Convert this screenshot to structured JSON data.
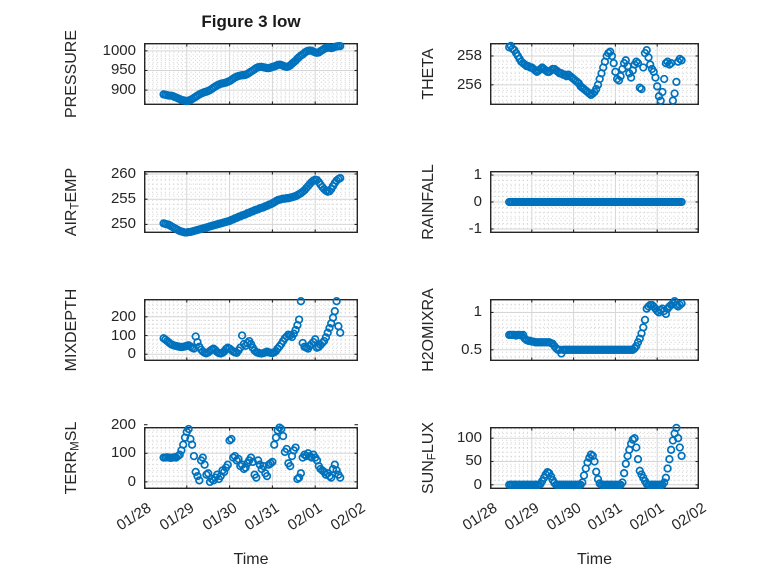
{
  "figure": {
    "title": "Figure 3 low",
    "xlabel": "Time",
    "marker_color": "#0072BD",
    "axis_color": "#262626",
    "major_grid_color": "#d6d6d6",
    "minor_grid_color": "#cbcbcb",
    "background": "#ffffff"
  },
  "time_axis": {
    "tick_labels": [
      "01/28",
      "01/29",
      "01/30",
      "01/31",
      "02/01",
      "02/02"
    ],
    "xlim_days": [
      0,
      5
    ],
    "t_start_days": 0.4583,
    "t_step_days": 0.0416667,
    "sampling": "hourly"
  },
  "chart_data": [
    {
      "id": "pressure",
      "type": "scatter",
      "row": 0,
      "col": 0,
      "ylabel": {
        "pre": "PRESSURE",
        "sub": "",
        "post": ""
      },
      "ylim": [
        862,
        1020
      ],
      "yticks": [
        900,
        950,
        1000
      ],
      "values": [
        889,
        888,
        887,
        886,
        886,
        885,
        883,
        881,
        879,
        877,
        875,
        874,
        873,
        872,
        873,
        875,
        877,
        880,
        883,
        886,
        889,
        891,
        893,
        895,
        896,
        898,
        900,
        903,
        906,
        909,
        912,
        914,
        916,
        917,
        918,
        919,
        921,
        923,
        926,
        929,
        932,
        934,
        936,
        937,
        938,
        938,
        939,
        941,
        944,
        947,
        950,
        953,
        956,
        958,
        959,
        959,
        958,
        957,
        956,
        956,
        957,
        959,
        960,
        962,
        964,
        965,
        964,
        962,
        960,
        959,
        960,
        963,
        967,
        971,
        975,
        980,
        984,
        988,
        991,
        995,
        998,
        1000,
        1001,
        1000,
        998,
        996,
        995,
        996,
        999,
        1002,
        1005,
        1007,
        1008,
        1008,
        1007,
        1008,
        1010,
        1011,
        1012,
        1012
      ]
    },
    {
      "id": "theta",
      "type": "scatter",
      "row": 0,
      "col": 1,
      "ylabel": {
        "pre": "THETA",
        "sub": "",
        "post": ""
      },
      "ylim": [
        254.6,
        258.9
      ],
      "yticks": [
        256,
        258
      ],
      "values": [
        258.6,
        258.7,
        258.5,
        258.4,
        258.2,
        258.0,
        257.8,
        257.6,
        257.5,
        257.4,
        257.3,
        257.3,
        257.2,
        257.2,
        257.1,
        257.0,
        256.9,
        257.0,
        257.1,
        257.2,
        257.1,
        257.0,
        256.9,
        256.9,
        257.0,
        257.1,
        257.1,
        257.0,
        256.9,
        256.8,
        256.8,
        256.7,
        256.7,
        256.6,
        256.7,
        256.6,
        256.5,
        256.4,
        256.3,
        256.2,
        256.1,
        255.9,
        255.8,
        255.7,
        255.6,
        255.5,
        255.4,
        255.3,
        255.4,
        255.5,
        255.7,
        256.0,
        256.4,
        256.8,
        257.2,
        257.6,
        258.0,
        258.2,
        258.3,
        258.0,
        257.5,
        256.9,
        256.4,
        256.3,
        256.6,
        257.1,
        257.5,
        257.7,
        257.3,
        256.8,
        256.5,
        257.0,
        257.4,
        257.6,
        257.5,
        255.8,
        255.7,
        257.2,
        258.2,
        258.4,
        257.9,
        257.4,
        257.1,
        256.9,
        256.5,
        255.9,
        255.2,
        254.9,
        255.5,
        256.4,
        257.5,
        257.6,
        257.4,
        257.5,
        254.9,
        255.4,
        256.2,
        257.6,
        257.8,
        257.7
      ]
    },
    {
      "id": "air_temp",
      "type": "scatter",
      "row": 1,
      "col": 0,
      "ylabel": {
        "pre": "AIR",
        "sub": "T",
        "post": "EMP"
      },
      "ylim": [
        248.3,
        260.6
      ],
      "yticks": [
        250,
        255,
        260
      ],
      "values": [
        250.2,
        250.1,
        250.0,
        249.9,
        249.7,
        249.5,
        249.3,
        249.1,
        248.9,
        248.7,
        248.6,
        248.5,
        248.4,
        248.4,
        248.5,
        248.5,
        248.6,
        248.7,
        248.8,
        248.9,
        249.0,
        249.1,
        249.2,
        249.3,
        249.4,
        249.5,
        249.6,
        249.7,
        249.8,
        249.9,
        250.0,
        250.1,
        250.2,
        250.3,
        250.4,
        250.5,
        250.6,
        250.7,
        250.9,
        251.0,
        251.2,
        251.3,
        251.5,
        251.6,
        251.8,
        251.9,
        252.0,
        252.2,
        252.3,
        252.5,
        252.6,
        252.8,
        252.9,
        253.0,
        253.2,
        253.3,
        253.4,
        253.6,
        253.7,
        253.9,
        254.0,
        254.2,
        254.4,
        254.6,
        254.8,
        254.9,
        255.0,
        255.1,
        255.1,
        255.2,
        255.2,
        255.3,
        255.4,
        255.5,
        255.6,
        255.8,
        256.0,
        256.2,
        256.5,
        256.8,
        257.2,
        257.6,
        258.0,
        258.4,
        258.7,
        258.9,
        258.8,
        258.4,
        257.9,
        257.4,
        257.0,
        256.7,
        256.5,
        256.6,
        257.0,
        257.6,
        258.2,
        258.7,
        259.0,
        259.2
      ]
    },
    {
      "id": "rainfall",
      "type": "scatter",
      "row": 1,
      "col": 1,
      "ylabel": {
        "pre": "RAINFALL",
        "sub": "",
        "post": ""
      },
      "ylim": [
        -1.15,
        1.15
      ],
      "yticks": [
        -1,
        0,
        1
      ],
      "values": [
        0,
        0,
        0,
        0,
        0,
        0,
        0,
        0,
        0,
        0,
        0,
        0,
        0,
        0,
        0,
        0,
        0,
        0,
        0,
        0,
        0,
        0,
        0,
        0,
        0,
        0,
        0,
        0,
        0,
        0,
        0,
        0,
        0,
        0,
        0,
        0,
        0,
        0,
        0,
        0,
        0,
        0,
        0,
        0,
        0,
        0,
        0,
        0,
        0,
        0,
        0,
        0,
        0,
        0,
        0,
        0,
        0,
        0,
        0,
        0,
        0,
        0,
        0,
        0,
        0,
        0,
        0,
        0,
        0,
        0,
        0,
        0,
        0,
        0,
        0,
        0,
        0,
        0,
        0,
        0,
        0,
        0,
        0,
        0,
        0,
        0,
        0,
        0,
        0,
        0,
        0,
        0,
        0,
        0,
        0,
        0,
        0,
        0,
        0,
        0
      ]
    },
    {
      "id": "mixdepth",
      "type": "scatter",
      "row": 2,
      "col": 0,
      "ylabel": {
        "pre": "MIXDEPTH",
        "sub": "",
        "post": ""
      },
      "ylim": [
        -36,
        295
      ],
      "yticks": [
        0,
        100,
        200
      ],
      "values": [
        85,
        78,
        70,
        62,
        55,
        50,
        46,
        44,
        42,
        40,
        38,
        40,
        42,
        45,
        48,
        42,
        35,
        30,
        95,
        65,
        40,
        25,
        15,
        8,
        5,
        10,
        18,
        25,
        30,
        22,
        12,
        6,
        4,
        8,
        15,
        28,
        35,
        30,
        22,
        15,
        10,
        8,
        20,
        35,
        100,
        55,
        45,
        60,
        70,
        55,
        35,
        20,
        12,
        8,
        5,
        4,
        6,
        10,
        14,
        10,
        8,
        6,
        10,
        18,
        30,
        42,
        55,
        70,
        85,
        95,
        105,
        100,
        92,
        110,
        130,
        155,
        185,
        283,
        60,
        40,
        35,
        30,
        45,
        55,
        65,
        80,
        35,
        40,
        50,
        60,
        70,
        90,
        115,
        140,
        165,
        195,
        230,
        283,
        150,
        115
      ]
    },
    {
      "id": "h2omixra",
      "type": "scatter",
      "row": 2,
      "col": 1,
      "ylabel": {
        "pre": "H2OMIXRA",
        "sub": "",
        "post": ""
      },
      "ylim": [
        0.35,
        1.18
      ],
      "yticks": [
        0.5,
        1
      ],
      "values": [
        0.7,
        0.7,
        0.7,
        0.7,
        0.69,
        0.7,
        0.7,
        0.69,
        0.7,
        0.65,
        0.63,
        0.62,
        0.62,
        0.61,
        0.61,
        0.6,
        0.6,
        0.6,
        0.6,
        0.6,
        0.6,
        0.6,
        0.6,
        0.6,
        0.59,
        0.58,
        0.55,
        0.52,
        0.5,
        0.5,
        0.45,
        0.5,
        0.5,
        0.5,
        0.5,
        0.5,
        0.5,
        0.5,
        0.5,
        0.5,
        0.5,
        0.5,
        0.5,
        0.5,
        0.5,
        0.5,
        0.5,
        0.5,
        0.5,
        0.5,
        0.5,
        0.5,
        0.5,
        0.5,
        0.5,
        0.5,
        0.5,
        0.5,
        0.5,
        0.5,
        0.5,
        0.5,
        0.5,
        0.5,
        0.5,
        0.5,
        0.5,
        0.5,
        0.5,
        0.5,
        0.5,
        0.5,
        0.52,
        0.55,
        0.6,
        0.65,
        0.72,
        0.8,
        0.9,
        1.05,
        1.08,
        1.1,
        1.1,
        1.08,
        1.05,
        1.02,
        1.0,
        1.03,
        1.05,
        1.02,
        0.98,
        1.05,
        1.08,
        1.1,
        1.12,
        1.15,
        1.1,
        1.08,
        1.1,
        1.12
      ]
    },
    {
      "id": "terr_msl",
      "type": "scatter",
      "row": 3,
      "col": 0,
      "ylabel": {
        "pre": "TERR",
        "sub": "M",
        "post": "SL"
      },
      "ylim": [
        -25,
        192
      ],
      "yticks": [
        0,
        100,
        200
      ],
      "values": [
        85,
        85,
        86,
        85,
        84,
        85,
        86,
        85,
        90,
        95,
        110,
        130,
        155,
        175,
        185,
        150,
        130,
        90,
        35,
        20,
        5,
        75,
        85,
        60,
        25,
        30,
        0,
        10,
        5,
        15,
        25,
        10,
        20,
        40,
        35,
        50,
        60,
        145,
        150,
        85,
        90,
        75,
        80,
        55,
        60,
        45,
        50,
        65,
        75,
        85,
        70,
        25,
        15,
        75,
        60,
        45,
        55,
        30,
        20,
        60,
        65,
        70,
        130,
        155,
        180,
        190,
        185,
        160,
        105,
        115,
        65,
        55,
        90,
        110,
        120,
        10,
        15,
        30,
        85,
        95,
        90,
        100,
        90,
        85,
        95,
        85,
        75,
        55,
        45,
        40,
        35,
        25,
        30,
        20,
        15,
        45,
        60,
        40,
        25,
        15
      ]
    },
    {
      "id": "sun_flux",
      "type": "scatter",
      "row": 3,
      "col": 1,
      "ylabel": {
        "pre": "SUN",
        "sub": "F",
        "post": "LUX"
      },
      "ylim": [
        -9,
        124
      ],
      "yticks": [
        0,
        50,
        100
      ],
      "values": [
        0,
        0,
        0,
        0,
        0,
        0,
        0,
        0,
        0,
        0,
        0,
        0,
        0,
        0,
        0,
        0,
        0,
        0,
        2,
        8,
        15,
        22,
        27,
        25,
        18,
        10,
        4,
        0,
        0,
        0,
        0,
        0,
        0,
        0,
        0,
        0,
        0,
        0,
        0,
        0,
        0,
        0,
        5,
        20,
        35,
        48,
        58,
        65,
        62,
        50,
        28,
        12,
        3,
        0,
        0,
        0,
        0,
        0,
        0,
        0,
        0,
        0,
        0,
        0,
        0,
        5,
        25,
        45,
        62,
        75,
        88,
        97,
        100,
        80,
        55,
        30,
        22,
        15,
        8,
        2,
        0,
        0,
        0,
        0,
        0,
        0,
        0,
        0,
        0,
        5,
        15,
        35,
        55,
        75,
        95,
        110,
        122,
        100,
        80,
        62
      ]
    }
  ]
}
